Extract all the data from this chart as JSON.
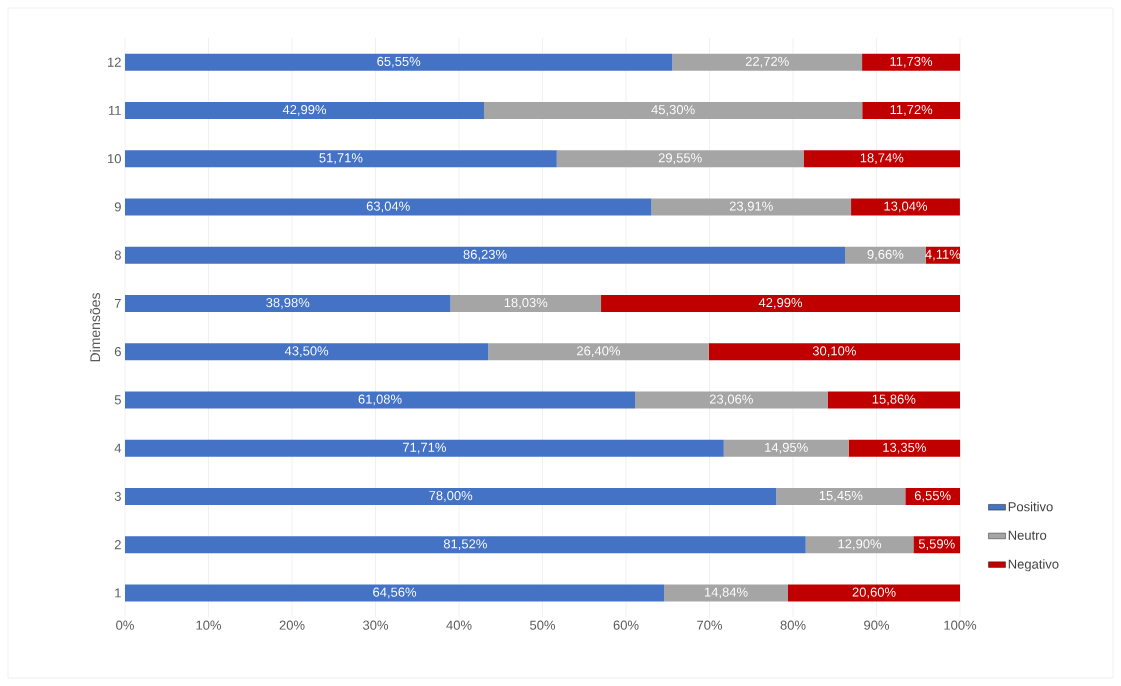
{
  "chart_data": {
    "type": "bar",
    "orientation": "horizontal",
    "stacked": true,
    "ylabel": "Dimensões",
    "categories": [
      "12",
      "11",
      "10",
      "9",
      "8",
      "7",
      "6",
      "5",
      "4",
      "3",
      "2",
      "1"
    ],
    "series": [
      {
        "name": "Positivo",
        "color": "#4472c4",
        "values": [
          65.55,
          42.99,
          51.71,
          63.04,
          86.23,
          38.98,
          43.5,
          61.08,
          71.71,
          78.0,
          81.52,
          64.56
        ],
        "value_labels": [
          "65,55%",
          "42,99%",
          "51,71%",
          "63,04%",
          "86,23%",
          "38,98%",
          "43,50%",
          "61,08%",
          "71,71%",
          "78,00%",
          "81,52%",
          "64,56%"
        ]
      },
      {
        "name": "Neutro",
        "color": "#a5a5a5",
        "values": [
          22.72,
          45.3,
          29.55,
          23.91,
          9.66,
          18.03,
          26.4,
          23.06,
          14.95,
          15.45,
          12.9,
          14.84
        ],
        "value_labels": [
          "22,72%",
          "45,30%",
          "29,55%",
          "23,91%",
          "9,66%",
          "18,03%",
          "26,40%",
          "23,06%",
          "14,95%",
          "15,45%",
          "12,90%",
          "14,84%"
        ]
      },
      {
        "name": "Negativo",
        "color": "#c00000",
        "values": [
          11.73,
          11.72,
          18.74,
          13.04,
          4.11,
          42.99,
          30.1,
          15.86,
          13.35,
          6.55,
          5.59,
          20.6
        ],
        "value_labels": [
          "11,73%",
          "11,72%",
          "18,74%",
          "13,04%",
          "4,11%",
          "42,99%",
          "30,10%",
          "15,86%",
          "13,35%",
          "6,55%",
          "5,59%",
          "20,60%"
        ]
      }
    ],
    "xlim": [
      0,
      100
    ],
    "xticks": [
      {
        "value": 0,
        "label": "0%"
      },
      {
        "value": 10,
        "label": "10%"
      },
      {
        "value": 20,
        "label": "20%"
      },
      {
        "value": 30,
        "label": "30%"
      },
      {
        "value": 40,
        "label": "40%"
      },
      {
        "value": 50,
        "label": "50%"
      },
      {
        "value": 60,
        "label": "60%"
      },
      {
        "value": 70,
        "label": "70%"
      },
      {
        "value": 80,
        "label": "80%"
      },
      {
        "value": 90,
        "label": "90%"
      },
      {
        "value": 100,
        "label": "100%"
      }
    ],
    "grid": "x",
    "legend": "right"
  }
}
